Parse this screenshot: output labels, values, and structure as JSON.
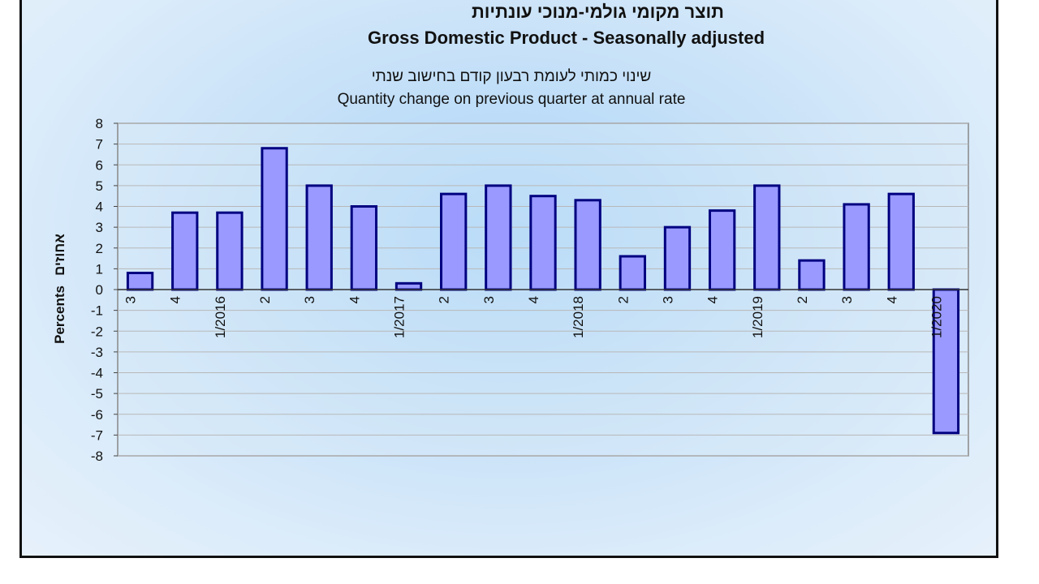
{
  "chart_data": {
    "type": "bar",
    "title_hebrew": "תוצר מקומי גולמי-מנוכי עונתיות",
    "title": "Gross Domestic Product - Seasonally adjusted",
    "subtitle_hebrew": "שינוי כמותי לעומת רבעון קודם בחישוב שנתי",
    "subtitle": "Quantity change on previous quarter at annual rate",
    "ylabel": "Percents",
    "ylabel_hebrew": "אחוזים",
    "xlabel": "",
    "ylim": [
      -8,
      8
    ],
    "yticks": [
      8,
      7,
      6,
      5,
      4,
      3,
      2,
      1,
      0,
      -1,
      -2,
      -3,
      -4,
      -5,
      -6,
      -7,
      -8
    ],
    "categories": [
      "3",
      "4",
      "1/2016",
      "2",
      "3",
      "4",
      "1/2017",
      "2",
      "3",
      "4",
      "1/2018",
      "2",
      "3",
      "4",
      "1/2019",
      "2",
      "3",
      "4",
      "1/2020"
    ],
    "values": [
      0.8,
      3.7,
      3.7,
      6.8,
      5.0,
      4.0,
      0.3,
      4.6,
      5.0,
      4.5,
      4.3,
      1.6,
      3.0,
      3.8,
      5.0,
      1.4,
      4.1,
      4.6,
      -6.9
    ],
    "bar_color": "#9999ff",
    "bar_edge_color": "#000080",
    "grid": true
  }
}
